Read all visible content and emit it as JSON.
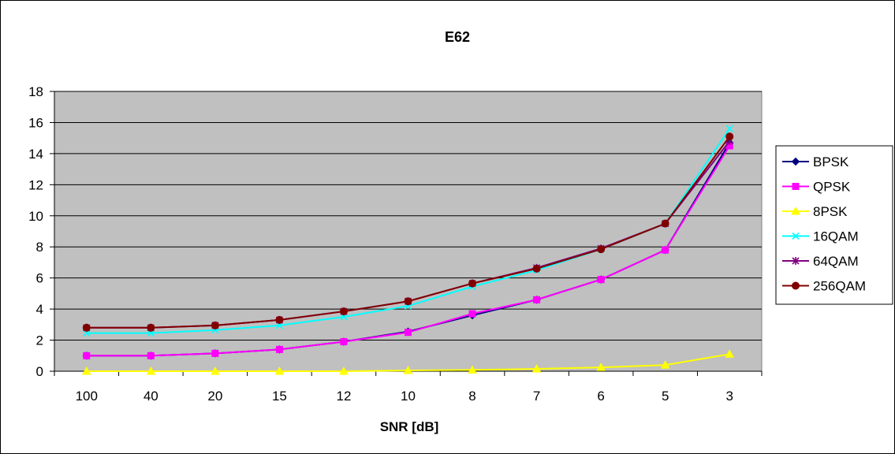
{
  "chart_data": {
    "type": "line",
    "title": "E62",
    "xlabel": "SNR [dB]",
    "ylabel": "",
    "categories": [
      "100",
      "40",
      "20",
      "15",
      "12",
      "10",
      "8",
      "7",
      "6",
      "5",
      "3"
    ],
    "ylim": [
      0,
      18
    ],
    "yticks": [
      "0",
      "2",
      "4",
      "6",
      "8",
      "10",
      "12",
      "14",
      "16",
      "18"
    ],
    "grid": true,
    "legend_position": "right",
    "plot_background": "#c0c0c0",
    "series": [
      {
        "name": "BPSK",
        "color": "#000080",
        "marker": "diamond",
        "values": [
          1.0,
          1.0,
          1.15,
          1.4,
          1.9,
          2.55,
          3.6,
          4.6,
          5.9,
          7.8,
          14.7
        ]
      },
      {
        "name": "QPSK",
        "color": "#ff00ff",
        "marker": "square",
        "values": [
          1.0,
          1.0,
          1.15,
          1.4,
          1.9,
          2.5,
          3.7,
          4.6,
          5.9,
          7.8,
          14.5
        ]
      },
      {
        "name": "8PSK",
        "color": "#ffff00",
        "marker": "triangle",
        "values": [
          0.0,
          0.0,
          0.0,
          0.0,
          0.0,
          0.05,
          0.08,
          0.15,
          0.25,
          0.4,
          1.1
        ]
      },
      {
        "name": "16QAM",
        "color": "#00ffff",
        "marker": "x",
        "values": [
          2.45,
          2.45,
          2.65,
          2.95,
          3.5,
          4.2,
          5.45,
          6.5,
          7.85,
          9.5,
          15.6
        ]
      },
      {
        "name": "64QAM",
        "color": "#800080",
        "marker": "star",
        "values": [
          2.8,
          2.8,
          2.95,
          3.3,
          3.85,
          4.5,
          5.65,
          6.65,
          7.9,
          9.5,
          14.8
        ]
      },
      {
        "name": "256QAM",
        "color": "#800000",
        "marker": "circle",
        "values": [
          2.8,
          2.8,
          2.95,
          3.3,
          3.85,
          4.5,
          5.65,
          6.6,
          7.85,
          9.5,
          15.1
        ]
      }
    ]
  }
}
